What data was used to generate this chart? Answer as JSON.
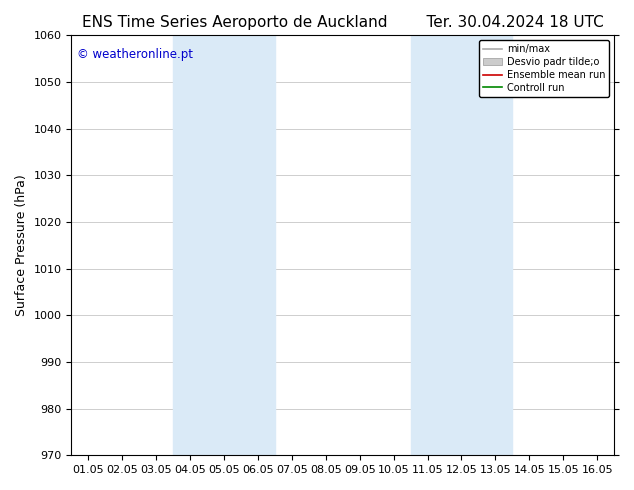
{
  "title_left": "ENS Time Series Aeroporto de Auckland",
  "title_right": "Ter. 30.04.2024 18 UTC",
  "ylabel": "Surface Pressure (hPa)",
  "ylim": [
    970,
    1060
  ],
  "yticks": [
    970,
    980,
    990,
    1000,
    1010,
    1020,
    1030,
    1040,
    1050,
    1060
  ],
  "xtick_labels": [
    "01.05",
    "02.05",
    "03.05",
    "04.05",
    "05.05",
    "06.05",
    "07.05",
    "08.05",
    "09.05",
    "10.05",
    "11.05",
    "12.05",
    "13.05",
    "14.05",
    "15.05",
    "16.05"
  ],
  "xtick_positions": [
    0,
    1,
    2,
    3,
    4,
    5,
    6,
    7,
    8,
    9,
    10,
    11,
    12,
    13,
    14,
    15
  ],
  "shaded_bands": [
    {
      "xmin": 3,
      "xmax": 5,
      "color": "#daeaf7"
    },
    {
      "xmin": 10,
      "xmax": 12,
      "color": "#daeaf7"
    }
  ],
  "watermark_text": "© weatheronline.pt",
  "watermark_color": "#0000cc",
  "legend_entries": [
    {
      "label": "min/max",
      "color": "#aaaaaa"
    },
    {
      "label": "Desvio padr tilde;o",
      "color": "#cccccc"
    },
    {
      "label": "Ensemble mean run",
      "color": "#cc0000"
    },
    {
      "label": "Controll run",
      "color": "#008800"
    }
  ],
  "bg_color": "#ffffff",
  "plot_bg_color": "#ffffff",
  "grid_color": "#bbbbbb",
  "title_fontsize": 11,
  "axis_label_fontsize": 9,
  "tick_fontsize": 8
}
